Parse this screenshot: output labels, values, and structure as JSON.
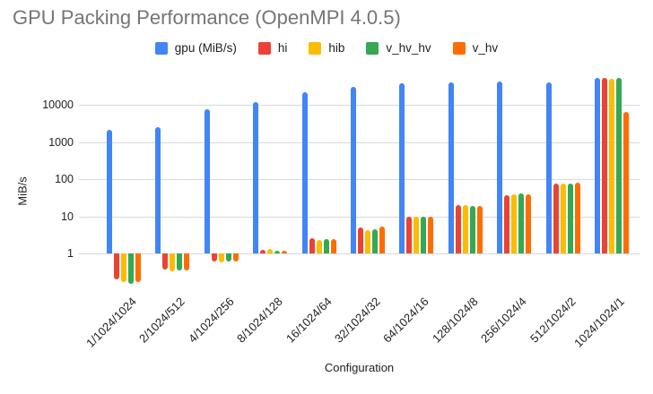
{
  "title": "GPU Packing Performance (OpenMPI 4.0.5)",
  "colors": {
    "title_text": "#757575",
    "axis_text": "#202124",
    "gridline": "#d9d9d9",
    "background": "#ffffff"
  },
  "chart_data": {
    "type": "bar",
    "title": "GPU Packing Performance (OpenMPI 4.0.5)",
    "xlabel": "Configuration",
    "ylabel": "MiB/s",
    "y_scale": "log",
    "y_ticks": [
      1,
      10,
      100,
      1000,
      10000
    ],
    "ylim": [
      0.13,
      65000
    ],
    "grid": true,
    "legend_position": "top",
    "categories": [
      "1/1024/1024",
      "2/1024/512",
      "4/1024/256",
      "8/1024/128",
      "16/1024/64",
      "32/1024/32",
      "64/1024/16",
      "128/1024/8",
      "256/1024/4",
      "512/1024/2",
      "1024/1024/1"
    ],
    "series": [
      {
        "name": "gpu (MiB/s)",
        "color": "#4285F4",
        "values": [
          2100,
          2500,
          7600,
          12000,
          22000,
          31000,
          37000,
          41000,
          43500,
          41000,
          52000
        ]
      },
      {
        "name": "hi",
        "color": "#EA4335",
        "values": [
          0.2,
          0.36,
          0.6,
          1.25,
          2.5,
          4.9,
          10,
          20,
          36,
          77,
          54000
        ]
      },
      {
        "name": "hib",
        "color": "#FBBC04",
        "values": [
          0.17,
          0.33,
          0.58,
          1.3,
          2.3,
          4.3,
          9.7,
          20,
          40,
          75,
          50000
        ]
      },
      {
        "name": "v_hv_hv",
        "color": "#34A853",
        "values": [
          0.15,
          0.35,
          0.6,
          1.2,
          2.4,
          4.4,
          10,
          19,
          42,
          75,
          54000
        ]
      },
      {
        "name": "v_hv",
        "color": "#FF6D01",
        "values": [
          0.17,
          0.34,
          0.6,
          1.2,
          2.4,
          5.2,
          10,
          19,
          40,
          79,
          6500
        ]
      }
    ]
  }
}
